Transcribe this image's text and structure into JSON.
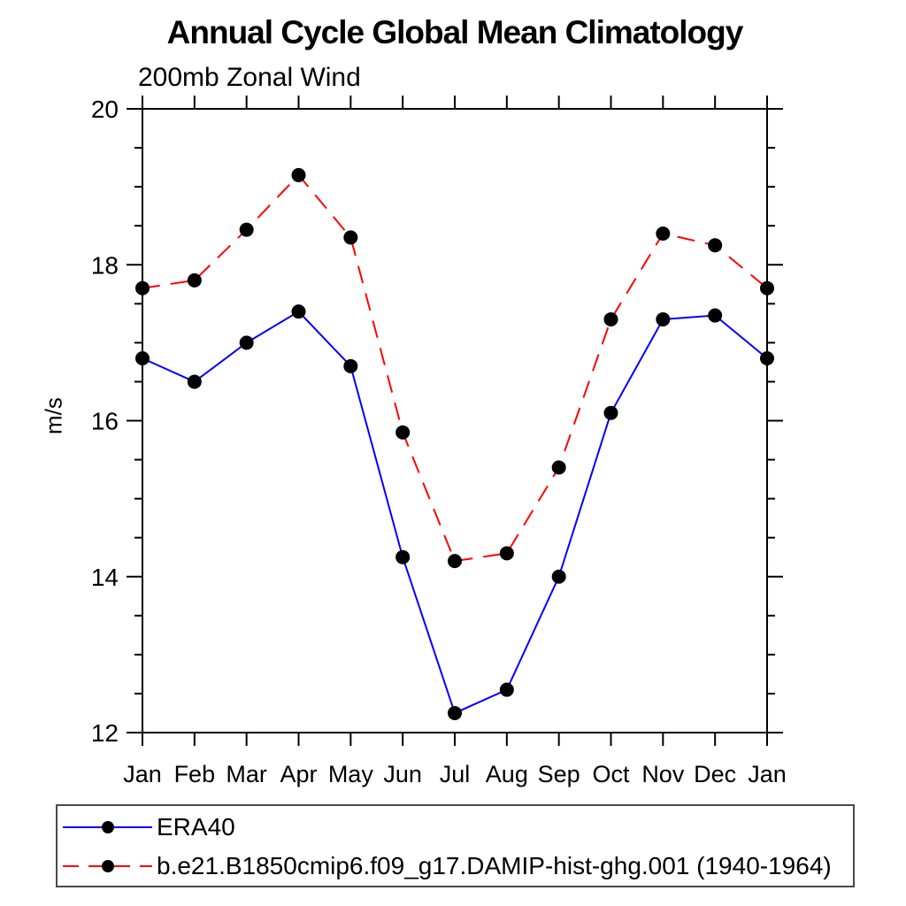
{
  "page": {
    "background": "#ffffff"
  },
  "chart_data": {
    "type": "line",
    "title": "Annual Cycle Global Mean Climatology",
    "subtitle": "200mb Zonal Wind",
    "ylabel": "m/s",
    "xlabel": "",
    "x_tick_labels": [
      "Jan",
      "Feb",
      "Mar",
      "Apr",
      "May",
      "Jun",
      "Jul",
      "Aug",
      "Sep",
      "Oct",
      "Nov",
      "Dec",
      "Jan"
    ],
    "y_tick_labels": [
      "12",
      "14",
      "16",
      "18",
      "20"
    ],
    "ylim": [
      12,
      20
    ],
    "y_major_step": 2,
    "y_minor_step": 0.5,
    "grid": false,
    "frame": true,
    "axis_color": "#000000",
    "marker_color": "#000000",
    "legend_position": "bottom-left",
    "legend_border_color": "#4a4a4a",
    "series": [
      {
        "name": "ERA40",
        "color": "#0000ff",
        "style": "solid",
        "marker": "circle",
        "values": [
          16.8,
          16.5,
          17.0,
          17.4,
          16.7,
          14.25,
          12.25,
          12.55,
          14.0,
          16.1,
          17.3,
          17.35,
          16.8
        ]
      },
      {
        "name": "b.e21.B1850cmip6.f09_g17.DAMIP-hist-ghg.001 (1940-1964)",
        "color": "#ff0000",
        "style": "dashed",
        "marker": "circle",
        "values": [
          17.7,
          17.8,
          18.45,
          19.15,
          18.35,
          15.85,
          14.2,
          14.3,
          15.4,
          17.3,
          18.4,
          18.25,
          17.7
        ]
      }
    ]
  }
}
